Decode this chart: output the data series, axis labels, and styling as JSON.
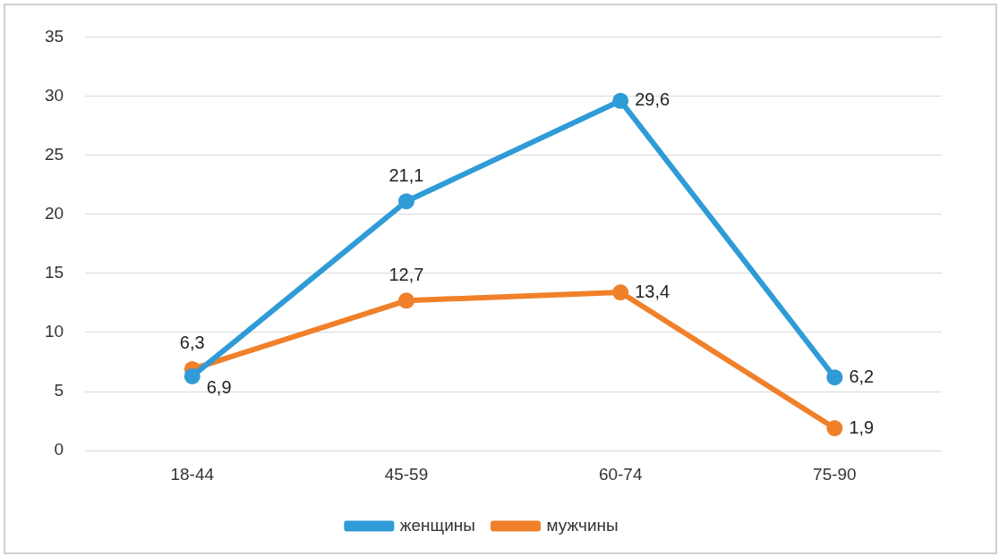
{
  "chart_data": {
    "type": "line",
    "categories": [
      "18-44",
      "45-59",
      "60-74",
      "75-90"
    ],
    "series": [
      {
        "name": "женщины",
        "color": "#2f9bd7",
        "values": [
          6.3,
          21.1,
          29.6,
          6.2
        ],
        "value_labels": [
          "6,3",
          "21,1",
          "29,6",
          "6,2"
        ]
      },
      {
        "name": "мужчины",
        "color": "#f0802a",
        "values": [
          6.9,
          12.7,
          13.4,
          1.9
        ],
        "value_labels": [
          "6,9",
          "12,7",
          "13,4",
          "1,9"
        ]
      }
    ],
    "ylim": [
      0,
      35
    ],
    "yticks": [
      0,
      5,
      10,
      15,
      20,
      25,
      30,
      35
    ],
    "grid": "y",
    "legend": "bottom",
    "marker": "circle",
    "line_style": "solid"
  }
}
